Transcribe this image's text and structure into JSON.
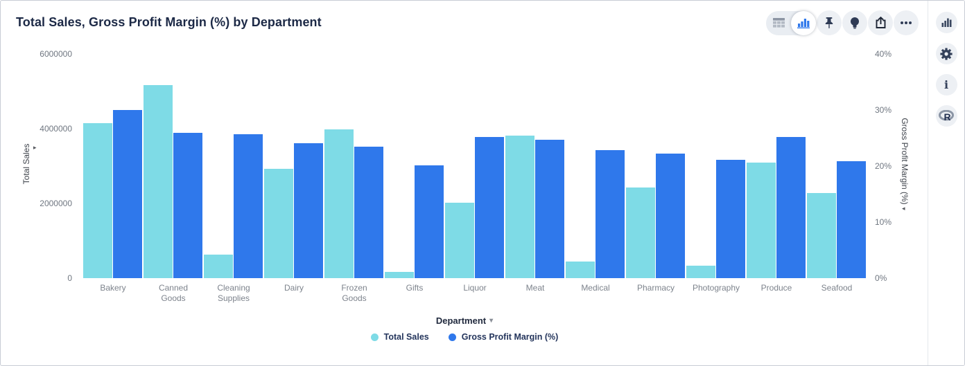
{
  "header": {
    "title": "Total Sales, Gross Profit Margin (%) by Department"
  },
  "toolbar": {
    "view_toggle": {
      "options": [
        {
          "name": "table-view",
          "icon": "table-grid-icon",
          "selected": false
        },
        {
          "name": "chart-view",
          "icon": "bar-chart-icon",
          "selected": true
        }
      ]
    },
    "buttons": [
      {
        "name": "pin",
        "icon": "pushpin-icon"
      },
      {
        "name": "insights",
        "icon": "lightbulb-icon"
      },
      {
        "name": "export",
        "icon": "share-export-icon"
      },
      {
        "name": "more",
        "icon": "ellipsis-icon"
      }
    ]
  },
  "sidebar": {
    "items": [
      {
        "name": "charts-panel",
        "icon": "bar-chart-icon"
      },
      {
        "name": "settings-panel",
        "icon": "gear-icon"
      },
      {
        "name": "info-panel",
        "icon": "info-icon"
      },
      {
        "name": "r-integration",
        "icon": "r-logo-icon"
      }
    ]
  },
  "colors": {
    "total_sales": "#7edbe6",
    "gross_profit_margin": "#2f78eb",
    "title_text": "#1c2946",
    "axis_text": "#6f7680",
    "icon_navy": "#2f3b55"
  },
  "chart_data": {
    "type": "bar",
    "title": "Total Sales, Gross Profit Margin (%) by Department",
    "grid": false,
    "legend_position": "bottom",
    "categories": [
      "Bakery",
      "Canned Goods",
      "Cleaning Supplies",
      "Dairy",
      "Frozen Goods",
      "Gifts",
      "Liquor",
      "Meat",
      "Medical",
      "Pharmacy",
      "Photography",
      "Produce",
      "Seafood"
    ],
    "series": [
      {
        "name": "Total Sales",
        "axis": "left",
        "color": "#7edbe6",
        "values": [
          4150000,
          5170000,
          630000,
          2930000,
          3990000,
          170000,
          2010000,
          3820000,
          450000,
          2420000,
          340000,
          3090000,
          2270000
        ]
      },
      {
        "name": "Gross Profit Margin (%)",
        "axis": "right",
        "color": "#2f78eb",
        "values": [
          30.0,
          25.9,
          25.7,
          24.1,
          23.4,
          20.1,
          25.2,
          24.7,
          22.8,
          22.2,
          21.1,
          25.2,
          20.9
        ]
      }
    ],
    "y_left": {
      "label": "Total Sales",
      "ticks": [
        0,
        2000000,
        4000000,
        6000000
      ],
      "min": 0,
      "max": 6000000
    },
    "y_right": {
      "label": "Gross Profit Margin (%)",
      "ticks": [
        0,
        10,
        20,
        30,
        40
      ],
      "min": 0,
      "max": 40,
      "suffix": "%"
    },
    "x_axis": {
      "label": "Department"
    }
  }
}
